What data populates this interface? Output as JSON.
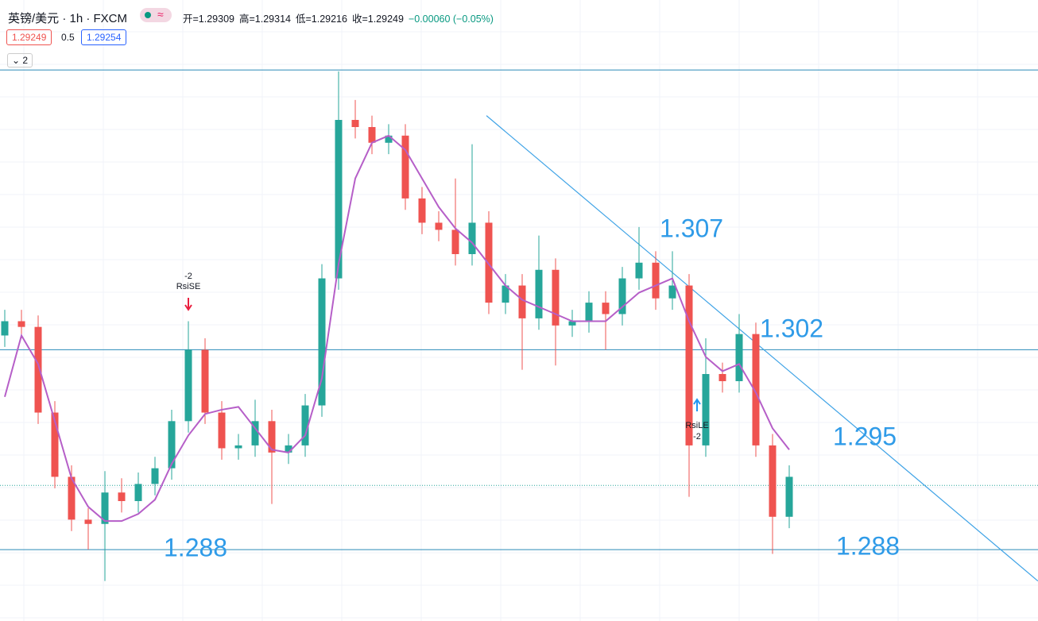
{
  "header": {
    "symbol": "英镑/美元 · 1h · FXCM",
    "ohlc": [
      "开=1.29309",
      "高=1.29314",
      "低=1.29216",
      "收=1.29249",
      "−0.00060 (−0.05%)"
    ],
    "sell": "1.29249",
    "spread": "0.5",
    "buy": "1.29254",
    "indicators": "2"
  },
  "chart_data": {
    "type": "candlestick",
    "ylim": [
      1.283,
      1.3265
    ],
    "open": [
      1.303,
      1.304,
      1.3036,
      1.2976,
      1.2931,
      1.2901,
      1.2898,
      1.292,
      1.2914,
      1.2926,
      1.2937,
      1.297,
      1.302,
      1.2976,
      1.2951,
      1.2953,
      1.297,
      1.2948,
      1.2953,
      1.2981,
      1.307,
      1.3181,
      1.3176,
      1.3165,
      1.317,
      1.3126,
      1.3109,
      1.3104,
      1.3087,
      1.3109,
      1.3053,
      1.3065,
      1.3042,
      1.3076,
      1.3037,
      1.304,
      1.3053,
      1.3045,
      1.307,
      1.3081,
      1.3056,
      1.3065,
      1.2953,
      1.3003,
      1.2998,
      1.3031,
      1.2953,
      1.2903
    ],
    "high": [
      1.3048,
      1.3048,
      1.3044,
      1.2984,
      1.2939,
      1.2909,
      1.2935,
      1.293,
      1.2934,
      1.2945,
      1.2978,
      1.304,
      1.3028,
      1.2984,
      1.2961,
      1.2985,
      1.2978,
      1.2961,
      1.2989,
      1.308,
      1.3215,
      1.3195,
      1.3184,
      1.3178,
      1.3178,
      1.3134,
      1.3117,
      1.314,
      1.3164,
      1.3117,
      1.3073,
      1.3073,
      1.31,
      1.3084,
      1.3048,
      1.3061,
      1.3061,
      1.3078,
      1.3106,
      1.3089,
      1.3089,
      1.3073,
      1.3028,
      1.3011,
      1.3045,
      1.3039,
      1.2961,
      1.2939
    ],
    "low": [
      1.3022,
      1.3028,
      1.2968,
      1.2923,
      1.2893,
      1.288,
      1.2858,
      1.2906,
      1.2906,
      1.2918,
      1.2929,
      1.2962,
      1.2968,
      1.2943,
      1.2943,
      1.2945,
      1.2912,
      1.294,
      1.2945,
      1.2973,
      1.3062,
      1.3168,
      1.3157,
      1.3157,
      1.3118,
      1.3101,
      1.3096,
      1.3079,
      1.3079,
      1.3045,
      1.3045,
      1.3006,
      1.3034,
      1.3009,
      1.3029,
      1.3032,
      1.302,
      1.3037,
      1.3062,
      1.3048,
      1.3048,
      1.2917,
      1.2945,
      1.299,
      1.299,
      1.2945,
      1.2877,
      1.2895
    ],
    "close": [
      1.304,
      1.3036,
      1.2976,
      1.2931,
      1.2901,
      1.2898,
      1.292,
      1.2914,
      1.2926,
      1.2937,
      1.297,
      1.302,
      1.2976,
      1.2951,
      1.2953,
      1.297,
      1.2948,
      1.2953,
      1.2981,
      1.307,
      1.3181,
      1.3176,
      1.3165,
      1.317,
      1.3126,
      1.3109,
      1.3104,
      1.3087,
      1.3109,
      1.3053,
      1.3065,
      1.3042,
      1.3076,
      1.3037,
      1.304,
      1.3053,
      1.3045,
      1.307,
      1.3081,
      1.3056,
      1.3065,
      1.2953,
      1.3003,
      1.2998,
      1.3031,
      1.2953,
      1.2903,
      1.2931
    ],
    "up_color": "#26a69a",
    "down_color": "#ef5350",
    "ma": {
      "color": "#b65fc8",
      "values": [
        1.2987,
        1.303,
        1.301,
        1.297,
        1.293,
        1.291,
        1.29,
        1.29,
        1.2905,
        1.2915,
        1.294,
        1.296,
        1.2975,
        1.2978,
        1.298,
        1.2965,
        1.295,
        1.2948,
        1.296,
        1.3,
        1.308,
        1.314,
        1.3165,
        1.317,
        1.316,
        1.314,
        1.312,
        1.3105,
        1.3095,
        1.308,
        1.3065,
        1.3055,
        1.305,
        1.3045,
        1.304,
        1.304,
        1.304,
        1.305,
        1.306,
        1.3065,
        1.307,
        1.304,
        1.3015,
        1.3005,
        1.301,
        1.299,
        1.2965,
        1.295
      ]
    },
    "hlines": [
      1.3216,
      1.302,
      1.288
    ],
    "hline_color": "#2a8bb8",
    "price_line": 1.2925,
    "trendline": {
      "x": [
        28.86,
        61.9
      ],
      "y": [
        1.3184,
        1.2858
      ],
      "color": "#3fa3e6"
    },
    "annotations": [
      "1.307",
      "1.302",
      "1.295",
      "1.288",
      "1.288"
    ],
    "annotation_color": "#2f9be8",
    "signals": [
      {
        "index": 11,
        "label": "RsiSE",
        "qty": "-2",
        "color": "#e91e3f"
      },
      {
        "index": 41,
        "label": "RsiLE",
        "qty": "-2",
        "color": "#2196f3"
      }
    ]
  }
}
